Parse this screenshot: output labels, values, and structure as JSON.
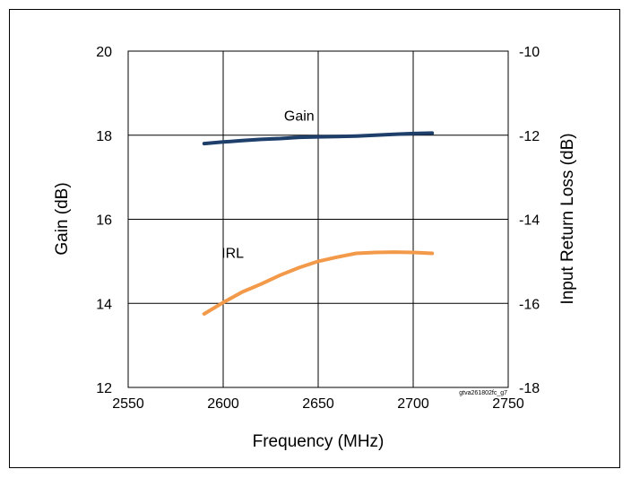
{
  "chart_data": {
    "type": "line",
    "xlabel": "Frequency (MHz)",
    "ylabel_left": "Gain (dB)",
    "ylabel_right": "Input Return Loss (dB)",
    "xlim": [
      2550,
      2750
    ],
    "ylim_left": [
      12,
      20
    ],
    "ylim_right": [
      -18,
      -10
    ],
    "x_ticks": [
      "2550",
      "2600",
      "2650",
      "2700",
      "2750"
    ],
    "y_left_ticks": [
      "12",
      "14",
      "16",
      "18",
      "20"
    ],
    "y_right_ticks": [
      "-18",
      "-16",
      "-14",
      "-12",
      "-10"
    ],
    "grid": true,
    "figure_id": "gtva261802fc_g7",
    "series": [
      {
        "name": "Gain",
        "axis": "left",
        "color": "#1f3f6b",
        "x": [
          2590,
          2600,
          2610,
          2620,
          2630,
          2640,
          2650,
          2660,
          2670,
          2680,
          2690,
          2700,
          2710
        ],
        "y": [
          17.8,
          17.84,
          17.87,
          17.9,
          17.92,
          17.95,
          17.96,
          17.97,
          17.98,
          18.0,
          18.02,
          18.04,
          18.05
        ]
      },
      {
        "name": "IRL",
        "axis": "right",
        "color": "#f39a4a",
        "x": [
          2590,
          2600,
          2610,
          2620,
          2630,
          2640,
          2650,
          2660,
          2670,
          2680,
          2690,
          2700,
          2710
        ],
        "y": [
          -16.25,
          -15.98,
          -15.73,
          -15.54,
          -15.33,
          -15.15,
          -15.0,
          -14.9,
          -14.81,
          -14.79,
          -14.78,
          -14.79,
          -14.81
        ]
      }
    ]
  }
}
